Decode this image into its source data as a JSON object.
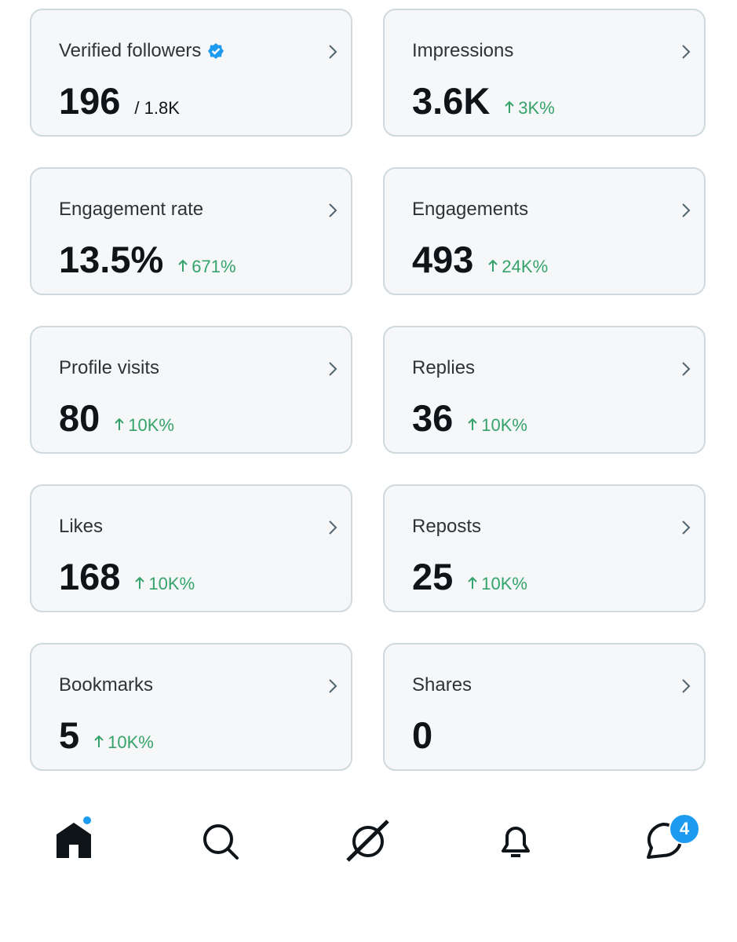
{
  "cards": [
    {
      "label": "Verified followers",
      "verified": true,
      "value": "196",
      "total": "/ 1.8K"
    },
    {
      "label": "Impressions",
      "value": "3.6K",
      "change": "3K%"
    },
    {
      "label": "Engagement rate",
      "value": "13.5%",
      "change": "671%"
    },
    {
      "label": "Engagements",
      "value": "493",
      "change": "24K%"
    },
    {
      "label": "Profile visits",
      "value": "80",
      "change": "10K%"
    },
    {
      "label": "Replies",
      "value": "36",
      "change": "10K%"
    },
    {
      "label": "Likes",
      "value": "168",
      "change": "10K%"
    },
    {
      "label": "Reposts",
      "value": "25",
      "change": "10K%"
    },
    {
      "label": "Bookmarks",
      "value": "5",
      "change": "10K%"
    },
    {
      "label": "Shares",
      "value": "0"
    }
  ],
  "nav": {
    "badge": "4"
  }
}
